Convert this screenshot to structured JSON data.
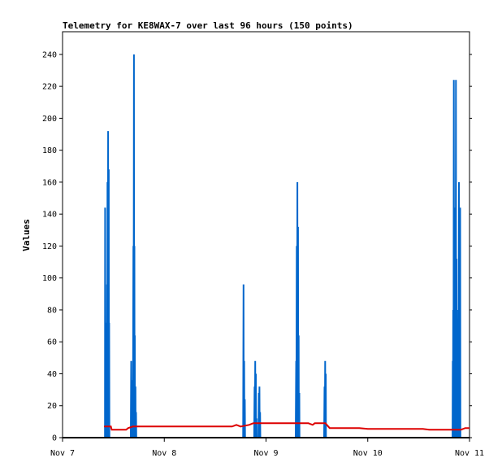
{
  "chart_data": {
    "type": "line",
    "title": "Telemetry for KE8WAX-7 over last 96 hours (150 points)",
    "xlabel": "",
    "ylabel": "Values",
    "ylim": [
      0,
      255
    ],
    "xlim_hours": [
      0,
      96
    ],
    "x_ticks": [
      {
        "label": "Nov 7",
        "hour": 0
      },
      {
        "label": "Nov 8",
        "hour": 24
      },
      {
        "label": "Nov 9",
        "hour": 48
      },
      {
        "label": "Nov 10",
        "hour": 72
      },
      {
        "label": "Nov 11",
        "hour": 96
      }
    ],
    "y_ticks": [
      0,
      20,
      40,
      60,
      80,
      100,
      120,
      140,
      160,
      180,
      200,
      220,
      240
    ],
    "grid": false,
    "series": [
      {
        "color": "#0066cc",
        "points": [
          [
            10.0,
            0
          ],
          [
            10.05,
            144
          ],
          [
            10.1,
            0
          ],
          [
            10.2,
            72
          ],
          [
            10.3,
            0
          ],
          [
            10.35,
            32
          ],
          [
            10.45,
            0
          ],
          [
            10.5,
            96
          ],
          [
            10.55,
            0
          ],
          [
            10.6,
            160
          ],
          [
            10.65,
            0
          ],
          [
            10.75,
            192
          ],
          [
            10.8,
            0
          ],
          [
            10.9,
            168
          ],
          [
            10.95,
            0
          ],
          [
            11.0,
            72
          ],
          [
            11.05,
            0
          ],
          [
            16.1,
            0
          ],
          [
            16.2,
            48
          ],
          [
            16.25,
            0
          ],
          [
            16.35,
            36
          ],
          [
            16.4,
            0
          ],
          [
            16.5,
            12
          ],
          [
            16.55,
            0
          ],
          [
            16.6,
            0
          ],
          [
            16.7,
            120
          ],
          [
            16.75,
            0
          ],
          [
            16.85,
            240
          ],
          [
            16.9,
            0
          ],
          [
            16.95,
            120
          ],
          [
            17.0,
            0
          ],
          [
            17.05,
            64
          ],
          [
            17.1,
            0
          ],
          [
            17.2,
            32
          ],
          [
            17.25,
            0
          ],
          [
            17.35,
            16
          ],
          [
            17.4,
            0
          ],
          [
            42.6,
            0
          ],
          [
            42.7,
            96
          ],
          [
            42.75,
            0
          ],
          [
            42.85,
            48
          ],
          [
            42.9,
            0
          ],
          [
            43.0,
            24
          ],
          [
            43.05,
            0
          ],
          [
            45.2,
            0
          ],
          [
            45.3,
            32
          ],
          [
            45.35,
            0
          ],
          [
            45.45,
            48
          ],
          [
            45.5,
            0
          ],
          [
            45.6,
            40
          ],
          [
            45.65,
            0
          ],
          [
            45.75,
            12
          ],
          [
            45.8,
            0
          ],
          [
            46.2,
            0
          ],
          [
            46.3,
            28
          ],
          [
            46.35,
            0
          ],
          [
            46.45,
            32
          ],
          [
            46.5,
            0
          ],
          [
            46.6,
            16
          ],
          [
            46.65,
            0
          ],
          [
            55.0,
            0
          ],
          [
            55.1,
            48
          ],
          [
            55.15,
            0
          ],
          [
            55.25,
            120
          ],
          [
            55.3,
            0
          ],
          [
            55.4,
            160
          ],
          [
            55.45,
            0
          ],
          [
            55.55,
            132
          ],
          [
            55.6,
            0
          ],
          [
            55.7,
            64
          ],
          [
            55.75,
            0
          ],
          [
            55.85,
            28
          ],
          [
            55.9,
            0
          ],
          [
            61.7,
            0
          ],
          [
            61.8,
            32
          ],
          [
            61.85,
            0
          ],
          [
            61.95,
            48
          ],
          [
            62.0,
            0
          ],
          [
            62.1,
            40
          ],
          [
            62.15,
            0
          ],
          [
            92.0,
            0
          ],
          [
            92.05,
            48
          ],
          [
            92.1,
            0
          ],
          [
            92.15,
            80
          ],
          [
            92.2,
            0
          ],
          [
            92.3,
            224
          ],
          [
            92.35,
            0
          ],
          [
            92.5,
            72
          ],
          [
            92.55,
            0
          ],
          [
            92.65,
            144
          ],
          [
            92.7,
            0
          ],
          [
            92.8,
            224
          ],
          [
            92.85,
            0
          ],
          [
            92.95,
            112
          ],
          [
            93.0,
            0
          ],
          [
            93.1,
            32
          ],
          [
            93.15,
            0
          ],
          [
            93.25,
            64
          ],
          [
            93.3,
            0
          ],
          [
            93.35,
            80
          ],
          [
            93.4,
            0
          ],
          [
            93.5,
            160
          ],
          [
            93.55,
            0
          ],
          [
            93.65,
            32
          ],
          [
            93.7,
            0
          ],
          [
            93.8,
            144
          ],
          [
            93.85,
            0
          ],
          [
            96.0,
            0
          ]
        ]
      },
      {
        "color": "#dd0000",
        "points": [
          [
            9.8,
            7
          ],
          [
            11.4,
            7
          ],
          [
            11.6,
            5
          ],
          [
            15.0,
            5
          ],
          [
            15.5,
            6
          ],
          [
            16.6,
            7
          ],
          [
            40.0,
            7
          ],
          [
            41.0,
            8
          ],
          [
            42.0,
            7
          ],
          [
            44.0,
            8
          ],
          [
            45.0,
            9
          ],
          [
            58.0,
            9
          ],
          [
            59.0,
            8
          ],
          [
            59.5,
            9
          ],
          [
            61.0,
            9
          ],
          [
            62.0,
            9
          ],
          [
            63.0,
            6
          ],
          [
            70.0,
            6
          ],
          [
            72.0,
            5.5
          ],
          [
            85.0,
            5.5
          ],
          [
            86.5,
            5
          ],
          [
            92.0,
            5
          ],
          [
            94.0,
            5
          ],
          [
            95.0,
            6
          ],
          [
            96.0,
            6
          ]
        ]
      }
    ]
  }
}
